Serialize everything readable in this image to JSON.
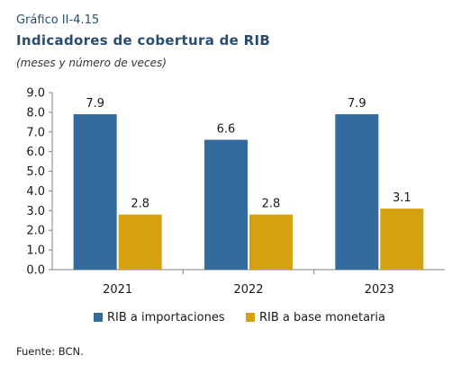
{
  "header": {
    "figure_id": "Gráfico II-4.15",
    "title": "Indicadores de cobertura de RIB",
    "subtitle": "(meses y número de veces)"
  },
  "source": "Fuente: BCN.",
  "colors": {
    "series1": "#336b9c",
    "series2": "#d4a20f"
  },
  "chart_data": {
    "type": "bar",
    "categories": [
      "2021",
      "2022",
      "2023"
    ],
    "series": [
      {
        "name": "RIB a importaciones",
        "values": [
          7.9,
          6.6,
          7.9
        ],
        "labels": [
          "7.9",
          "6.6",
          "7.9"
        ]
      },
      {
        "name": "RIB a base monetaria",
        "values": [
          2.8,
          2.8,
          3.1
        ],
        "labels": [
          "2.8",
          "2.8",
          "3.1"
        ]
      }
    ],
    "ylim": [
      0,
      9
    ],
    "yticks": [
      "0.0",
      "1.0",
      "2.0",
      "3.0",
      "4.0",
      "5.0",
      "6.0",
      "7.0",
      "8.0",
      "9.0"
    ],
    "legend_position": "bottom",
    "grid": false
  }
}
